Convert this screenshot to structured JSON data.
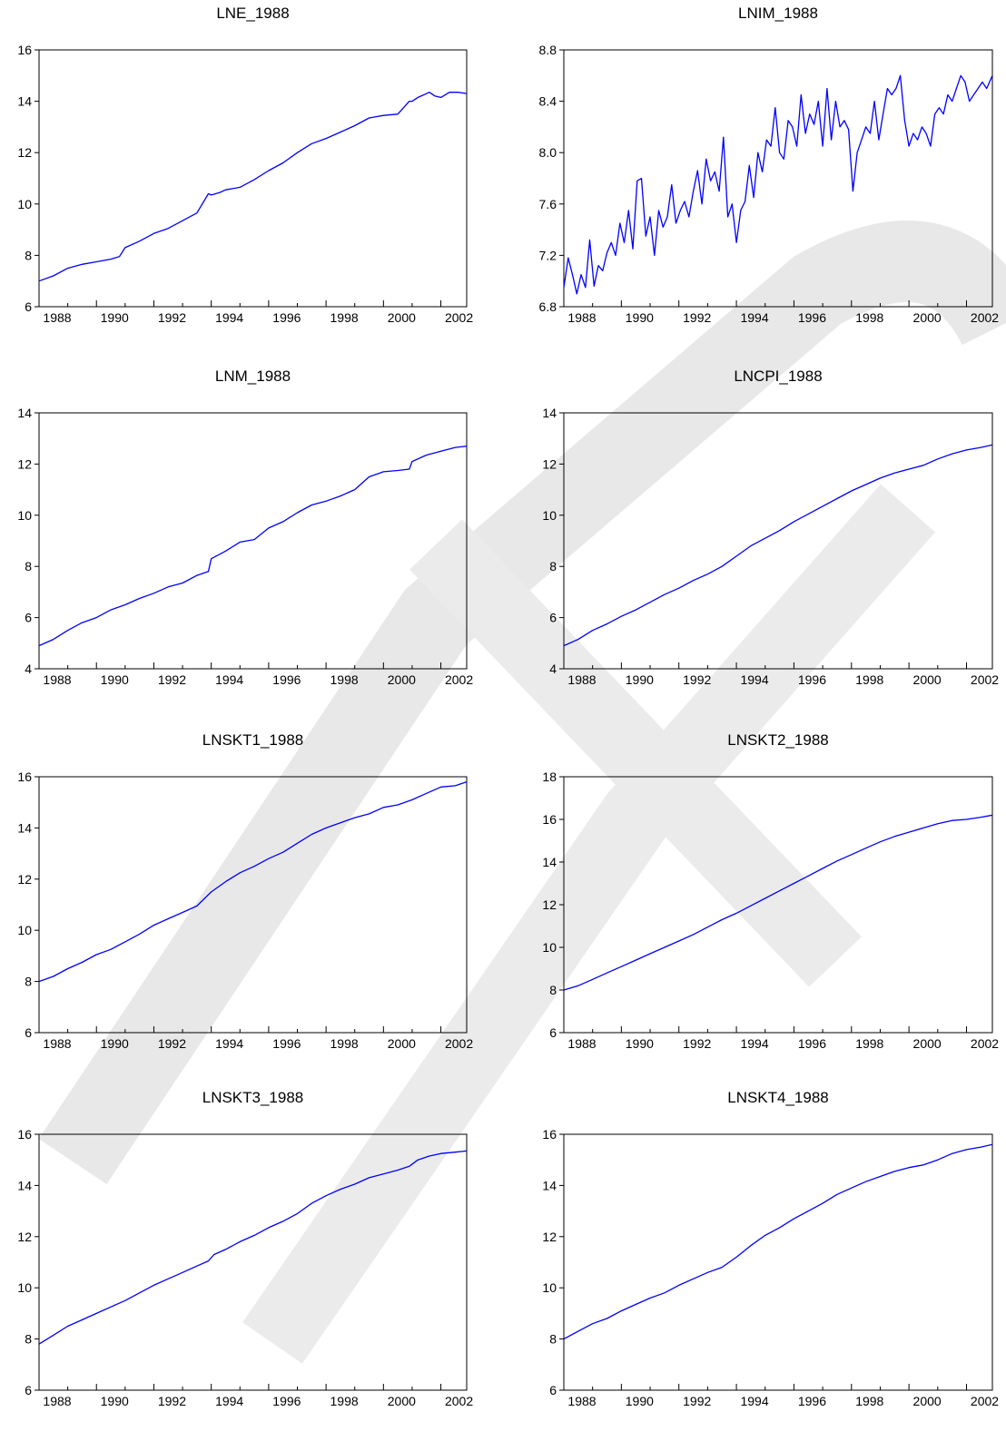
{
  "chart_data": [
    {
      "type": "line",
      "title": "LNE_1988",
      "xlim": [
        1988,
        2002.9
      ],
      "xticks": [
        1988,
        1990,
        1992,
        1994,
        1996,
        1998,
        2000,
        2002
      ],
      "ylim": [
        6,
        16
      ],
      "yticks": [
        "6",
        "8",
        "10",
        "12",
        "14",
        "16"
      ],
      "series": [
        {
          "x": [
            1988,
            1988.5,
            1989,
            1989.5,
            1990,
            1990.5,
            1990.8,
            1991,
            1991.5,
            1992,
            1992.5,
            1993,
            1993.5,
            1993.9,
            1994,
            1994.3,
            1994.5,
            1995,
            1995.5,
            1996,
            1996.5,
            1997,
            1997.5,
            1998,
            1998.5,
            1999,
            1999.5,
            2000,
            2000.5,
            2000.9,
            2001,
            2001.2,
            2001.6,
            2001.8,
            2002,
            2002.3,
            2002.6,
            2002.9
          ],
          "y": [
            7.0,
            7.2,
            7.5,
            7.65,
            7.75,
            7.85,
            7.95,
            8.3,
            8.55,
            8.85,
            9.05,
            9.35,
            9.65,
            10.4,
            10.35,
            10.45,
            10.55,
            10.65,
            10.95,
            11.3,
            11.6,
            12.0,
            12.35,
            12.55,
            12.8,
            13.05,
            13.35,
            13.45,
            13.5,
            14.0,
            14.0,
            14.15,
            14.35,
            14.2,
            14.15,
            14.35,
            14.35,
            14.3
          ]
        }
      ]
    },
    {
      "type": "line",
      "title": "LNIM_1988",
      "xlim": [
        1988,
        2002.9
      ],
      "xticks": [
        1988,
        1990,
        1992,
        1994,
        1996,
        1998,
        2000,
        2002
      ],
      "ylim": [
        6.8,
        8.8
      ],
      "yticks": [
        "6.8",
        "7.2",
        "7.6",
        "8.0",
        "8.4",
        "8.8"
      ],
      "series": [
        {
          "x": [
            1988,
            1988.15,
            1988.3,
            1988.45,
            1988.6,
            1988.75,
            1988.9,
            1989.05,
            1989.2,
            1989.35,
            1989.5,
            1989.65,
            1989.8,
            1989.95,
            1990.1,
            1990.25,
            1990.4,
            1990.55,
            1990.7,
            1990.85,
            1991,
            1991.15,
            1991.3,
            1991.45,
            1991.6,
            1991.75,
            1991.9,
            1992.05,
            1992.2,
            1992.35,
            1992.5,
            1992.65,
            1992.8,
            1992.95,
            1993.1,
            1993.25,
            1993.4,
            1993.55,
            1993.7,
            1993.85,
            1994,
            1994.15,
            1994.3,
            1994.45,
            1994.6,
            1994.75,
            1994.9,
            1995.05,
            1995.2,
            1995.35,
            1995.5,
            1995.65,
            1995.8,
            1995.95,
            1996.1,
            1996.25,
            1996.4,
            1996.55,
            1996.7,
            1996.85,
            1997,
            1997.15,
            1997.3,
            1997.45,
            1997.6,
            1997.75,
            1997.9,
            1998.05,
            1998.2,
            1998.35,
            1998.5,
            1998.65,
            1998.8,
            1998.95,
            1999.1,
            1999.25,
            1999.4,
            1999.55,
            1999.7,
            1999.85,
            2000,
            2000.15,
            2000.3,
            2000.45,
            2000.6,
            2000.75,
            2000.9,
            2001.05,
            2001.2,
            2001.35,
            2001.5,
            2001.65,
            2001.8,
            2001.95,
            2002.1,
            2002.25,
            2002.4,
            2002.55,
            2002.7,
            2002.9
          ],
          "y": [
            6.95,
            7.18,
            7.05,
            6.9,
            7.05,
            6.95,
            7.32,
            6.96,
            7.12,
            7.08,
            7.22,
            7.3,
            7.2,
            7.45,
            7.3,
            7.55,
            7.25,
            7.78,
            7.8,
            7.35,
            7.5,
            7.2,
            7.55,
            7.42,
            7.5,
            7.75,
            7.45,
            7.55,
            7.62,
            7.5,
            7.7,
            7.86,
            7.6,
            7.95,
            7.78,
            7.85,
            7.7,
            8.12,
            7.5,
            7.6,
            7.3,
            7.55,
            7.62,
            7.9,
            7.65,
            8.0,
            7.85,
            8.1,
            8.05,
            8.35,
            8.0,
            7.95,
            8.25,
            8.2,
            8.05,
            8.45,
            8.15,
            8.3,
            8.22,
            8.4,
            8.05,
            8.5,
            8.1,
            8.4,
            8.2,
            8.25,
            8.18,
            7.7,
            8.0,
            8.1,
            8.2,
            8.15,
            8.4,
            8.1,
            8.3,
            8.5,
            8.45,
            8.5,
            8.6,
            8.25,
            8.05,
            8.15,
            8.1,
            8.2,
            8.15,
            8.05,
            8.3,
            8.35,
            8.3,
            8.45,
            8.4,
            8.5,
            8.6,
            8.55,
            8.4,
            8.45,
            8.5,
            8.55,
            8.5,
            8.6
          ]
        }
      ]
    },
    {
      "type": "line",
      "title": "LNM_1988",
      "xlim": [
        1988,
        2002.9
      ],
      "xticks": [
        1988,
        1990,
        1992,
        1994,
        1996,
        1998,
        2000,
        2002
      ],
      "ylim": [
        4,
        14
      ],
      "yticks": [
        "4",
        "6",
        "8",
        "10",
        "12",
        "14"
      ],
      "series": [
        {
          "x": [
            1988,
            1988.5,
            1989,
            1989.5,
            1990,
            1990.5,
            1991,
            1991.5,
            1992,
            1992.5,
            1993,
            1993.5,
            1993.9,
            1994,
            1994.5,
            1995,
            1995.5,
            1996,
            1996.5,
            1997,
            1997.5,
            1998,
            1998.5,
            1999,
            1999.5,
            2000,
            2000.5,
            2000.9,
            2001,
            2001.5,
            2002,
            2002.5,
            2002.9
          ],
          "y": [
            4.9,
            5.15,
            5.5,
            5.8,
            6.0,
            6.3,
            6.5,
            6.75,
            6.95,
            7.2,
            7.35,
            7.65,
            7.8,
            8.3,
            8.6,
            8.95,
            9.05,
            9.5,
            9.75,
            10.1,
            10.4,
            10.55,
            10.75,
            11.0,
            11.5,
            11.7,
            11.75,
            11.8,
            12.1,
            12.35,
            12.5,
            12.65,
            12.7
          ]
        }
      ]
    },
    {
      "type": "line",
      "title": "LNCPI_1988",
      "xlim": [
        1988,
        2002.9
      ],
      "xticks": [
        1988,
        1990,
        1992,
        1994,
        1996,
        1998,
        2000,
        2002
      ],
      "ylim": [
        4,
        14
      ],
      "yticks": [
        "4",
        "6",
        "8",
        "10",
        "12",
        "14"
      ],
      "series": [
        {
          "x": [
            1988,
            1988.5,
            1989,
            1989.5,
            1990,
            1990.5,
            1991,
            1991.5,
            1992,
            1992.5,
            1993,
            1993.5,
            1994,
            1994.5,
            1995,
            1995.5,
            1996,
            1996.5,
            1997,
            1997.5,
            1998,
            1998.5,
            1999,
            1999.5,
            2000,
            2000.5,
            2001,
            2001.5,
            2002,
            2002.5,
            2002.9
          ],
          "y": [
            4.9,
            5.15,
            5.5,
            5.75,
            6.05,
            6.3,
            6.6,
            6.9,
            7.15,
            7.45,
            7.7,
            8.0,
            8.4,
            8.8,
            9.1,
            9.4,
            9.75,
            10.05,
            10.35,
            10.65,
            10.95,
            11.2,
            11.45,
            11.65,
            11.8,
            11.95,
            12.2,
            12.4,
            12.55,
            12.65,
            12.75
          ]
        }
      ]
    },
    {
      "type": "line",
      "title": "LNSKT1_1988",
      "xlim": [
        1988,
        2002.9
      ],
      "xticks": [
        1988,
        1990,
        1992,
        1994,
        1996,
        1998,
        2000,
        2002
      ],
      "ylim": [
        6,
        16
      ],
      "yticks": [
        "6",
        "8",
        "10",
        "12",
        "14",
        "16"
      ],
      "series": [
        {
          "x": [
            1988,
            1988.5,
            1989,
            1989.5,
            1990,
            1990.5,
            1991,
            1991.5,
            1992,
            1992.5,
            1993,
            1993.5,
            1994,
            1994.5,
            1995,
            1995.5,
            1996,
            1996.5,
            1997,
            1997.5,
            1998,
            1998.5,
            1999,
            1999.5,
            2000,
            2000.5,
            2001,
            2001.5,
            2002,
            2002.5,
            2002.9
          ],
          "y": [
            8.0,
            8.2,
            8.5,
            8.75,
            9.05,
            9.25,
            9.55,
            9.85,
            10.2,
            10.45,
            10.7,
            10.95,
            11.5,
            11.9,
            12.25,
            12.5,
            12.8,
            13.05,
            13.4,
            13.75,
            14.0,
            14.2,
            14.4,
            14.55,
            14.8,
            14.9,
            15.1,
            15.35,
            15.6,
            15.65,
            15.8
          ]
        }
      ]
    },
    {
      "type": "line",
      "title": "LNSKT2_1988",
      "xlim": [
        1988,
        2002.9
      ],
      "xticks": [
        1988,
        1990,
        1992,
        1994,
        1996,
        1998,
        2000,
        2002
      ],
      "ylim": [
        6,
        18
      ],
      "yticks": [
        "6",
        "8",
        "10",
        "12",
        "14",
        "16",
        "18"
      ],
      "series": [
        {
          "x": [
            1988,
            1988.5,
            1989,
            1989.5,
            1990,
            1990.5,
            1991,
            1991.5,
            1992,
            1992.5,
            1993,
            1993.5,
            1994,
            1994.5,
            1995,
            1995.5,
            1996,
            1996.5,
            1997,
            1997.5,
            1998,
            1998.5,
            1999,
            1999.5,
            2000,
            2000.5,
            2001,
            2001.5,
            2002,
            2002.5,
            2002.9
          ],
          "y": [
            8.0,
            8.2,
            8.5,
            8.8,
            9.1,
            9.4,
            9.7,
            10.0,
            10.3,
            10.6,
            10.95,
            11.3,
            11.6,
            11.95,
            12.3,
            12.65,
            13.0,
            13.35,
            13.7,
            14.05,
            14.35,
            14.65,
            14.95,
            15.2,
            15.4,
            15.6,
            15.8,
            15.95,
            16.0,
            16.1,
            16.2
          ]
        }
      ]
    },
    {
      "type": "line",
      "title": "LNSKT3_1988",
      "xlim": [
        1988,
        2002.9
      ],
      "xticks": [
        1988,
        1990,
        1992,
        1994,
        1996,
        1998,
        2000,
        2002
      ],
      "ylim": [
        6,
        16
      ],
      "yticks": [
        "6",
        "8",
        "10",
        "12",
        "14",
        "16"
      ],
      "series": [
        {
          "x": [
            1988,
            1988.5,
            1989,
            1989.5,
            1990,
            1990.5,
            1991,
            1991.5,
            1992,
            1992.5,
            1993,
            1993.5,
            1993.9,
            1994.1,
            1994.5,
            1995,
            1995.5,
            1996,
            1996.5,
            1997,
            1997.5,
            1998,
            1998.5,
            1999,
            1999.5,
            2000,
            2000.5,
            2000.9,
            2001.2,
            2001.6,
            2002,
            2002.5,
            2002.9
          ],
          "y": [
            7.8,
            8.15,
            8.5,
            8.75,
            9.0,
            9.25,
            9.5,
            9.8,
            10.1,
            10.35,
            10.6,
            10.85,
            11.05,
            11.3,
            11.5,
            11.8,
            12.05,
            12.35,
            12.6,
            12.9,
            13.3,
            13.6,
            13.85,
            14.05,
            14.3,
            14.45,
            14.6,
            14.75,
            15.0,
            15.15,
            15.25,
            15.3,
            15.35
          ]
        }
      ]
    },
    {
      "type": "line",
      "title": "LNSKT4_1988",
      "xlim": [
        1988,
        2002.9
      ],
      "xticks": [
        1988,
        1990,
        1992,
        1994,
        1996,
        1998,
        2000,
        2002
      ],
      "ylim": [
        6,
        16
      ],
      "yticks": [
        "6",
        "8",
        "10",
        "12",
        "14",
        "16"
      ],
      "series": [
        {
          "x": [
            1988,
            1988.5,
            1989,
            1989.5,
            1990,
            1990.5,
            1991,
            1991.5,
            1992,
            1992.5,
            1993,
            1993.5,
            1994,
            1994.5,
            1995,
            1995.5,
            1996,
            1996.5,
            1997,
            1997.5,
            1998,
            1998.5,
            1999,
            1999.5,
            2000,
            2000.5,
            2001,
            2001.5,
            2002,
            2002.5,
            2002.9
          ],
          "y": [
            8.0,
            8.3,
            8.6,
            8.8,
            9.1,
            9.35,
            9.6,
            9.8,
            10.1,
            10.35,
            10.6,
            10.8,
            11.2,
            11.65,
            12.05,
            12.35,
            12.7,
            13.0,
            13.3,
            13.65,
            13.9,
            14.15,
            14.35,
            14.55,
            14.7,
            14.8,
            15.0,
            15.25,
            15.4,
            15.5,
            15.6
          ]
        }
      ]
    }
  ],
  "colors": {
    "line": "#0000ff",
    "axis": "#000000",
    "text": "#000000",
    "watermark": "#d9d9d9"
  }
}
